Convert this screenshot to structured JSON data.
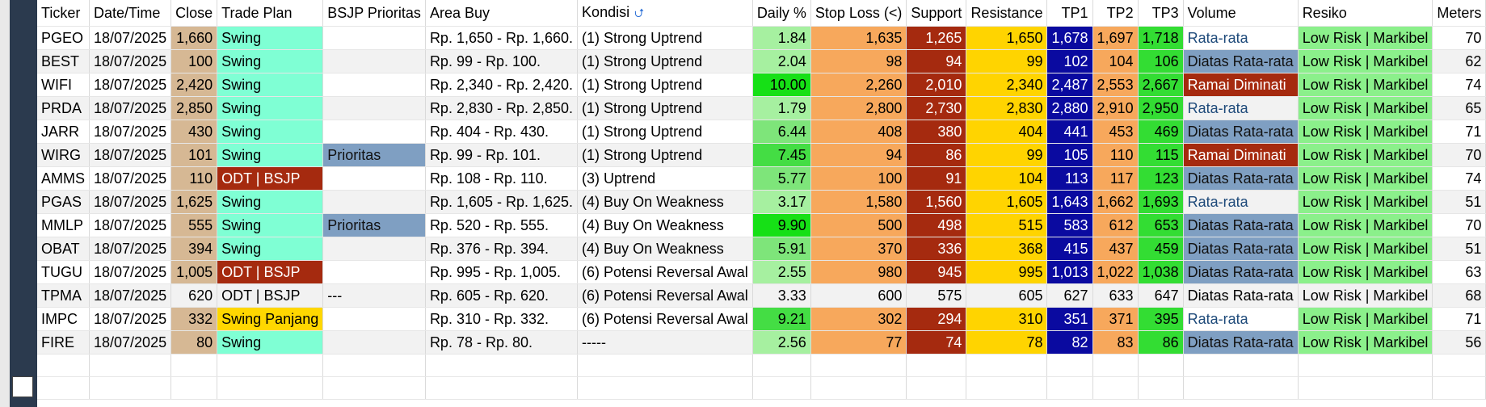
{
  "headers": [
    "Ticker",
    "Date/Time",
    "Close",
    "Trade Plan",
    "BSJP Prioritas",
    "Area Buy",
    "Kondisi",
    "Daily %",
    "Stop Loss (<)",
    "Support",
    "Resistance",
    "TP1",
    "TP2",
    "TP3",
    "Volume",
    "Resiko",
    "Meters"
  ],
  "rows": [
    {
      "ticker": "PGEO",
      "date": "18/07/2025",
      "close": "1,660",
      "plan": "Swing",
      "prior": "",
      "area": "Rp. 1,650 - Rp. 1,660.",
      "kondisi": "(1) Strong Uptrend",
      "daily": "1.84",
      "sl": "1,635",
      "sup": "1,265",
      "res": "1,650",
      "tp1": "1,678",
      "tp2": "1,697",
      "tp3": "1,718",
      "vol": "Rata-rata",
      "resiko": "Low Risk | Markibel",
      "meters": "70"
    },
    {
      "ticker": "BEST",
      "date": "18/07/2025",
      "close": "100",
      "plan": "Swing",
      "prior": "",
      "area": "Rp. 99 - Rp. 100.",
      "kondisi": "(1) Strong Uptrend",
      "daily": "2.04",
      "sl": "98",
      "sup": "94",
      "res": "99",
      "tp1": "102",
      "tp2": "104",
      "tp3": "106",
      "vol": "Diatas Rata-rata",
      "resiko": "Low Risk | Markibel",
      "meters": "62"
    },
    {
      "ticker": "WIFI",
      "date": "18/07/2025",
      "close": "2,420",
      "plan": "Swing",
      "prior": "",
      "area": "Rp. 2,340 - Rp. 2,420.",
      "kondisi": "(1) Strong Uptrend",
      "daily": "10.00",
      "sl": "2,260",
      "sup": "2,010",
      "res": "2,340",
      "tp1": "2,487",
      "tp2": "2,553",
      "tp3": "2,667",
      "vol": "Ramai Diminati",
      "resiko": "Low Risk | Markibel",
      "meters": "74"
    },
    {
      "ticker": "PRDA",
      "date": "18/07/2025",
      "close": "2,850",
      "plan": "Swing",
      "prior": "",
      "area": "Rp. 2,830 - Rp. 2,850.",
      "kondisi": "(1) Strong Uptrend",
      "daily": "1.79",
      "sl": "2,800",
      "sup": "2,730",
      "res": "2,830",
      "tp1": "2,880",
      "tp2": "2,910",
      "tp3": "2,950",
      "vol": "Rata-rata",
      "resiko": "Low Risk | Markibel",
      "meters": "65"
    },
    {
      "ticker": "JARR",
      "date": "18/07/2025",
      "close": "430",
      "plan": "Swing",
      "prior": "",
      "area": "Rp. 404 - Rp. 430.",
      "kondisi": "(1) Strong Uptrend",
      "daily": "6.44",
      "sl": "408",
      "sup": "380",
      "res": "404",
      "tp1": "441",
      "tp2": "453",
      "tp3": "469",
      "vol": "Diatas Rata-rata",
      "resiko": "Low Risk | Markibel",
      "meters": "71"
    },
    {
      "ticker": "WIRG",
      "date": "18/07/2025",
      "close": "101",
      "plan": "Swing",
      "prior": "Prioritas",
      "area": "Rp. 99 - Rp. 101.",
      "kondisi": "(1) Strong Uptrend",
      "daily": "7.45",
      "sl": "94",
      "sup": "86",
      "res": "99",
      "tp1": "105",
      "tp2": "110",
      "tp3": "115",
      "vol": "Ramai Diminati",
      "resiko": "Low Risk | Markibel",
      "meters": "70"
    },
    {
      "ticker": "AMMS",
      "date": "18/07/2025",
      "close": "110",
      "plan": "ODT | BSJP",
      "prior": "",
      "area": "Rp. 108 - Rp. 110.",
      "kondisi": "(3) Uptrend",
      "daily": "5.77",
      "sl": "100",
      "sup": "91",
      "res": "104",
      "tp1": "113",
      "tp2": "117",
      "tp3": "123",
      "vol": "Diatas Rata-rata",
      "resiko": "Low Risk | Markibel",
      "meters": "74"
    },
    {
      "ticker": "PGAS",
      "date": "18/07/2025",
      "close": "1,625",
      "plan": "Swing",
      "prior": "",
      "area": "Rp. 1,605 - Rp. 1,625.",
      "kondisi": "(4) Buy On Weakness",
      "daily": "3.17",
      "sl": "1,580",
      "sup": "1,560",
      "res": "1,605",
      "tp1": "1,643",
      "tp2": "1,662",
      "tp3": "1,693",
      "vol": "Rata-rata",
      "resiko": "Low Risk | Markibel",
      "meters": "51"
    },
    {
      "ticker": "MMLP",
      "date": "18/07/2025",
      "close": "555",
      "plan": "Swing",
      "prior": "Prioritas",
      "area": "Rp. 520 - Rp. 555.",
      "kondisi": "(4) Buy On Weakness",
      "daily": "9.90",
      "sl": "500",
      "sup": "498",
      "res": "515",
      "tp1": "583",
      "tp2": "612",
      "tp3": "653",
      "vol": "Diatas Rata-rata",
      "resiko": "Low Risk | Markibel",
      "meters": "70"
    },
    {
      "ticker": "OBAT",
      "date": "18/07/2025",
      "close": "394",
      "plan": "Swing",
      "prior": "",
      "area": "Rp. 376 - Rp. 394.",
      "kondisi": "(4) Buy On Weakness",
      "daily": "5.91",
      "sl": "370",
      "sup": "336",
      "res": "368",
      "tp1": "415",
      "tp2": "437",
      "tp3": "459",
      "vol": "Diatas Rata-rata",
      "resiko": "Low Risk | Markibel",
      "meters": "51"
    },
    {
      "ticker": "TUGU",
      "date": "18/07/2025",
      "close": "1,005",
      "plan": "ODT | BSJP",
      "prior": "",
      "area": "Rp. 995 - Rp. 1,005.",
      "kondisi": "(6) Potensi Reversal Awal",
      "daily": "2.55",
      "sl": "980",
      "sup": "945",
      "res": "995",
      "tp1": "1,013",
      "tp2": "1,022",
      "tp3": "1,038",
      "vol": "Diatas Rata-rata",
      "resiko": "Low Risk | Markibel",
      "meters": "63"
    },
    {
      "ticker": "TPMA",
      "date": "18/07/2025",
      "close": "620",
      "plan": "ODT | BSJP",
      "prior": "---",
      "area": "Rp. 605 - Rp. 620.",
      "kondisi": "(6) Potensi Reversal Awal",
      "daily": "3.33",
      "sl": "600",
      "sup": "575",
      "res": "605",
      "tp1": "627",
      "tp2": "633",
      "tp3": "647",
      "vol": "Diatas Rata-rata",
      "resiko": "Low Risk | Markibel",
      "meters": "68"
    },
    {
      "ticker": "IMPC",
      "date": "18/07/2025",
      "close": "332",
      "plan": "Swing Panjang",
      "prior": "",
      "area": "Rp. 310 - Rp. 332.",
      "kondisi": "(6) Potensi Reversal Awal",
      "daily": "9.21",
      "sl": "302",
      "sup": "294",
      "res": "310",
      "tp1": "351",
      "tp2": "371",
      "tp3": "395",
      "vol": "Rata-rata",
      "resiko": "Low Risk | Markibel",
      "meters": "71"
    },
    {
      "ticker": "FIRE",
      "date": "18/07/2025",
      "close": "80",
      "plan": "Swing",
      "prior": "",
      "area": "Rp. 78 - Rp. 80.",
      "kondisi": "-----",
      "daily": "2.56",
      "sl": "77",
      "sup": "74",
      "res": "78",
      "tp1": "82",
      "tp2": "83",
      "tp3": "86",
      "vol": "Diatas Rata-rata",
      "resiko": "Low Risk | Markibel",
      "meters": "56"
    }
  ],
  "styles": {
    "plain_row": "TPMA",
    "plan_colors": {
      "Swing": "#7fffd4",
      "ODT | BSJP": "#a52a0f",
      "Swing Panjang": "#ffd700"
    },
    "volume_colors": {
      "Rata-rata": "#ffffff",
      "Diatas Rata-rata": "#7f9fc2",
      "Ramai Diminati": "#a52a0f"
    },
    "sort_icon": "sort-arrow-icon"
  }
}
